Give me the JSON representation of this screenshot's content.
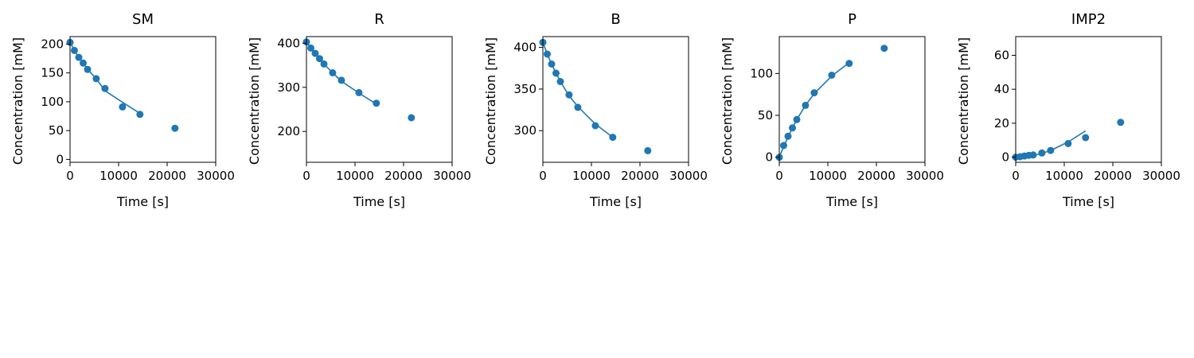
{
  "chart_data": [
    {
      "type": "scatter",
      "title": "SM",
      "xlabel": "Time [s]",
      "ylabel": "Concentration [mM]",
      "xlim": [
        0,
        30000
      ],
      "ylim": [
        -5,
        213
      ],
      "xticks": [
        0,
        10000,
        20000,
        30000
      ],
      "yticks": [
        0,
        50,
        100,
        150,
        200
      ],
      "color": "#1f77b4",
      "points": {
        "x": [
          0,
          900,
          1800,
          2700,
          3600,
          5400,
          7200,
          10800,
          14400,
          21600
        ],
        "y": [
          203,
          189,
          177,
          167,
          156,
          140,
          123,
          91,
          78,
          54
        ]
      },
      "fit": {
        "x": [
          0,
          900,
          1800,
          2700,
          3600,
          5400,
          7200,
          10800,
          14400
        ],
        "y": [
          203,
          189,
          177,
          167,
          156,
          140,
          119,
          99,
          80
        ]
      }
    },
    {
      "type": "scatter",
      "title": "R",
      "xlabel": "Time [s]",
      "ylabel": "Concentration [mM]",
      "xlim": [
        0,
        30000
      ],
      "ylim": [
        130,
        415
      ],
      "xticks": [
        0,
        10000,
        20000,
        30000
      ],
      "yticks": [
        200,
        300,
        400
      ],
      "color": "#1f77b4",
      "points": {
        "x": [
          0,
          900,
          1800,
          2700,
          3600,
          5400,
          7200,
          10800,
          14400,
          21600
        ],
        "y": [
          403,
          389,
          377,
          365,
          353,
          333,
          316,
          288,
          264,
          231
        ]
      },
      "fit": {
        "x": [
          0,
          900,
          1800,
          2700,
          3600,
          5400,
          7200,
          10800,
          14400
        ],
        "y": [
          403,
          389,
          377,
          365,
          353,
          333,
          314,
          287,
          262
        ]
      }
    },
    {
      "type": "scatter",
      "title": "B",
      "xlabel": "Time [s]",
      "ylabel": "Concentration [mM]",
      "xlim": [
        0,
        30000
      ],
      "ylim": [
        262,
        413
      ],
      "xticks": [
        0,
        10000,
        20000,
        30000
      ],
      "yticks": [
        300,
        350,
        400
      ],
      "color": "#1f77b4",
      "points": {
        "x": [
          0,
          900,
          1800,
          2700,
          3600,
          5400,
          7200,
          10800,
          14400,
          21600
        ],
        "y": [
          406,
          392,
          380,
          369,
          359,
          343,
          328,
          306,
          292,
          276
        ]
      },
      "fit": {
        "x": [
          0,
          900,
          1800,
          2700,
          3600,
          5400,
          7200,
          10800,
          14400
        ],
        "y": [
          406,
          392,
          380,
          369,
          359,
          342,
          329,
          308,
          292
        ]
      }
    },
    {
      "type": "scatter",
      "title": "P",
      "xlabel": "Time [s]",
      "ylabel": "Concentration [mM]",
      "xlim": [
        0,
        30000
      ],
      "ylim": [
        -6,
        144
      ],
      "xticks": [
        0,
        10000,
        20000,
        30000
      ],
      "yticks": [
        0,
        50,
        100
      ],
      "color": "#1f77b4",
      "points": {
        "x": [
          0,
          900,
          1800,
          2700,
          3600,
          5400,
          7200,
          10800,
          14400,
          21600
        ],
        "y": [
          0,
          14,
          25,
          35,
          45,
          62,
          77,
          98,
          112,
          130
        ]
      },
      "fit": {
        "x": [
          0,
          900,
          1800,
          2700,
          3600,
          5400,
          7200,
          10800,
          14400
        ],
        "y": [
          0,
          13,
          24,
          35,
          45,
          62,
          76,
          97,
          113
        ]
      }
    },
    {
      "type": "scatter",
      "title": "IMP2",
      "xlabel": "Time [s]",
      "ylabel": "Concentration [mM]",
      "xlim": [
        0,
        30000
      ],
      "ylim": [
        -3,
        71
      ],
      "xticks": [
        0,
        10000,
        20000,
        30000
      ],
      "yticks": [
        0,
        20,
        40,
        60
      ],
      "color": "#1f77b4",
      "points": {
        "x": [
          0,
          900,
          1800,
          2700,
          3600,
          5400,
          7200,
          10800,
          14400,
          21600
        ],
        "y": [
          0,
          0.3,
          0.7,
          1.1,
          1.3,
          2.5,
          4,
          8,
          11.5,
          20.5
        ]
      },
      "fit": {
        "x": [
          0,
          900,
          1800,
          2700,
          3600,
          5400,
          7200,
          10800,
          14400
        ],
        "y": [
          0,
          0.1,
          0.3,
          0.6,
          1,
          2.2,
          4,
          9,
          15.5
        ]
      }
    }
  ]
}
